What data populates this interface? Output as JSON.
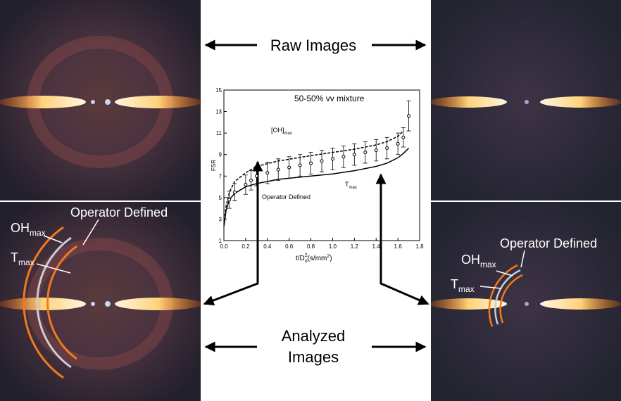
{
  "raw_label": "Raw Images",
  "analyzed_label": [
    "Analyzed",
    "Images"
  ],
  "left_panel": {
    "oh": "OH",
    "oh_sub": "max",
    "operator": "Operator Defined",
    "t": "T",
    "t_sub": "max"
  },
  "right_panel": {
    "oh": "OH",
    "oh_sub": "max",
    "operator": "Operator Defined",
    "t": "T",
    "t_sub": "max"
  },
  "chart_data": {
    "type": "line",
    "title": "50-50% vv mixture",
    "xlabel": [
      "t/D",
      "o",
      "2",
      "(s/mm",
      "2",
      ")"
    ],
    "ylabel": "FSR",
    "xlim": [
      0,
      1.8
    ],
    "xticks": [
      {
        "value": 0,
        "label": "0.0"
      },
      {
        "value": 0.2,
        "label": "0.2"
      },
      {
        "value": 0.4,
        "label": "0.4"
      },
      {
        "value": 0.6,
        "label": "0.6"
      },
      {
        "value": 0.8,
        "label": "0.8"
      },
      {
        "value": 1,
        "label": "1.0"
      },
      {
        "value": 1.2,
        "label": "1.2"
      },
      {
        "value": 1.4,
        "label": "1.4"
      },
      {
        "value": 1.6,
        "label": "1.6"
      },
      {
        "value": 1.8,
        "label": "1.8"
      }
    ],
    "ylim": [
      1,
      15
    ],
    "yticks": [
      1,
      3,
      5,
      7,
      9,
      11,
      13,
      15
    ],
    "series": [
      {
        "name": "[OH]",
        "name_sub": "max",
        "color": "#000000",
        "style": "dashed",
        "x": [
          0,
          0.02,
          0.05,
          0.1,
          0.2,
          0.3,
          0.5,
          0.8,
          1.0,
          1.2,
          1.4,
          1.5,
          1.6,
          1.65
        ],
        "values": [
          2.5,
          4.2,
          5.5,
          6.5,
          7.3,
          7.9,
          8.4,
          8.9,
          9.2,
          9.5,
          9.9,
          10.2,
          10.7,
          11.2
        ]
      },
      {
        "name": "T",
        "name_sub": "max",
        "color": "#000000",
        "style": "solid",
        "x": [
          0,
          0.02,
          0.05,
          0.1,
          0.2,
          0.3,
          0.5,
          0.8,
          1.0,
          1.2,
          1.4,
          1.5,
          1.6,
          1.65,
          1.7
        ],
        "values": [
          2.3,
          3.8,
          4.8,
          5.4,
          6.0,
          6.3,
          6.7,
          7.0,
          7.2,
          7.5,
          7.9,
          8.2,
          8.7,
          9.1,
          9.6
        ]
      },
      {
        "name": "Operator Defined",
        "color": "#000000",
        "style": "errorbar",
        "x": [
          0.05,
          0.1,
          0.2,
          0.25,
          0.3,
          0.4,
          0.5,
          0.6,
          0.7,
          0.8,
          0.9,
          1.0,
          1.1,
          1.2,
          1.3,
          1.4,
          1.5,
          1.6,
          1.65,
          1.7
        ],
        "values": [
          4.8,
          5.5,
          6.2,
          6.6,
          7.0,
          7.3,
          7.6,
          7.8,
          8.0,
          8.2,
          8.4,
          8.6,
          8.8,
          9.0,
          9.2,
          9.4,
          9.6,
          10.0,
          10.6,
          12.6
        ],
        "errors": [
          0.8,
          0.8,
          0.9,
          0.9,
          0.9,
          1.0,
          1.0,
          1.0,
          1.0,
          1.0,
          1.0,
          1.0,
          1.0,
          1.0,
          1.0,
          1.0,
          1.0,
          1.0,
          0.9,
          1.4
        ]
      }
    ]
  }
}
